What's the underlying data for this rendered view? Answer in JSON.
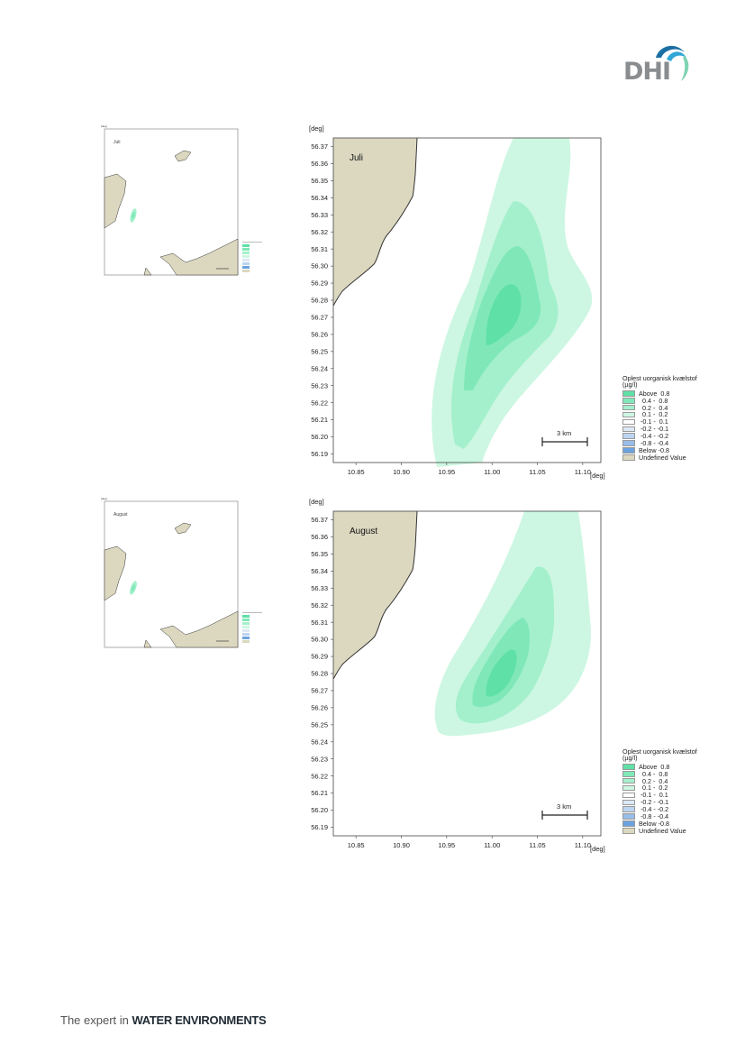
{
  "header": {
    "logo_text": "DHI",
    "logo_colors": {
      "text": "#8a8d8f",
      "wave_dark": "#1c6fa3",
      "wave_mid": "#2fa6d6",
      "wave_light": "#7fd3b3"
    }
  },
  "footer": {
    "tagline_prefix": "The expert in",
    "tagline_bold": "WATER ENVIRONMENTS"
  },
  "units": {
    "deg": "[deg]"
  },
  "legend": {
    "title_line1": "Oplest uorganisk kvælstof",
    "title_line2": "(µg/l)",
    "items": [
      {
        "label": "Above  0.8",
        "color": "#5fe0a6"
      },
      {
        "label": "  0.4 -  0.8",
        "color": "#80e8b8"
      },
      {
        "label": "  0.2 -  0.4",
        "color": "#a4f0cc"
      },
      {
        "label": "  0.1 -  0.2",
        "color": "#cdf7e2"
      },
      {
        "label": " -0.1 -  0.1",
        "color": "#ffffff"
      },
      {
        "label": " -0.2 - -0.1",
        "color": "#dde8f5"
      },
      {
        "label": " -0.4 - -0.2",
        "color": "#bcd4ef"
      },
      {
        "label": " -0.8 - -0.4",
        "color": "#98bde8"
      },
      {
        "label": "Below -0.8",
        "color": "#6ba3e0"
      },
      {
        "label": "Undefined Value",
        "color": "#dcd8c0"
      }
    ]
  },
  "colors": {
    "land": "#dcd8c0",
    "coast": "#333333",
    "frame": "#444444"
  },
  "axes": {
    "y_ticks": [
      "56.37",
      "56.36",
      "56.35",
      "56.34",
      "56.33",
      "56.32",
      "56.31",
      "56.30",
      "56.29",
      "56.28",
      "56.27",
      "56.26",
      "56.25",
      "56.24",
      "56.23",
      "56.22",
      "56.21",
      "56.20",
      "56.19"
    ],
    "x_ticks": [
      "10.85",
      "10.90",
      "10.95",
      "11.00",
      "11.05",
      "11.10"
    ],
    "xlim": [
      10.825,
      11.12
    ],
    "ylim": [
      56.185,
      56.375
    ]
  },
  "scale_bar": {
    "label": "3 km"
  },
  "panels": [
    {
      "month": "Juli"
    },
    {
      "month": "August"
    }
  ]
}
